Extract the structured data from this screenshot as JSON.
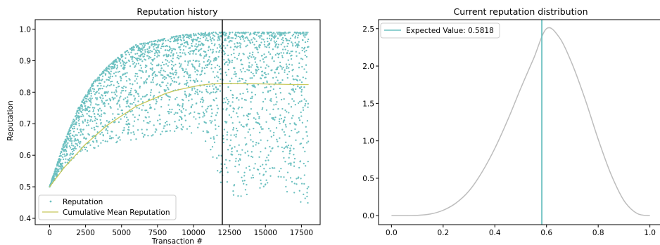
{
  "chart_data": [
    {
      "type": "scatter",
      "title": "Reputation history",
      "xlabel": "Transaction #",
      "ylabel": "Reputation",
      "xlim": [
        -1000,
        18800
      ],
      "ylim": [
        0.38,
        1.03
      ],
      "xticks": [
        0,
        2500,
        5000,
        7500,
        10000,
        12500,
        15000,
        17500
      ],
      "xtick_labels": [
        "0",
        "2500",
        "5000",
        "7500",
        "10000",
        "12500",
        "15000",
        "17500"
      ],
      "yticks": [
        0.4,
        0.5,
        0.6,
        0.7,
        0.8,
        0.9,
        1.0
      ],
      "ytick_labels": [
        "0.4",
        "0.5",
        "0.6",
        "0.7",
        "0.8",
        "0.9",
        "1.0"
      ],
      "vline_x": 12000,
      "legend_position": "lower-left",
      "colors": {
        "reputation": "#6cc0c0",
        "cumulative_mean": "#c8c85a",
        "vline": "#000000"
      },
      "series": [
        {
          "name": "Reputation",
          "kind": "points",
          "upper_envelope": {
            "x": [
              0,
              1000,
              2000,
              3000,
              4000,
              5000,
              6000,
              7000,
              8000,
              9000,
              10000,
              11000,
              12000,
              13000,
              14000,
              15000,
              16000,
              17000,
              18000
            ],
            "y": [
              0.5,
              0.64,
              0.75,
              0.83,
              0.88,
              0.92,
              0.95,
              0.96,
              0.97,
              0.98,
              0.985,
              0.99,
              0.99,
              0.99,
              0.99,
              0.99,
              0.99,
              0.99,
              0.99
            ]
          },
          "lower_envelope": {
            "x": [
              0,
              1000,
              2000,
              3000,
              4000,
              5000,
              6000,
              7000,
              8000,
              9000,
              10000,
              11000,
              12000,
              13000,
              14000,
              15000,
              16000,
              17000,
              18000
            ],
            "y": [
              0.5,
              0.56,
              0.6,
              0.62,
              0.64,
              0.64,
              0.65,
              0.66,
              0.66,
              0.67,
              0.66,
              0.64,
              0.5,
              0.46,
              0.48,
              0.5,
              0.5,
              0.46,
              0.44
            ]
          }
        },
        {
          "name": "Cumulative Mean Reputation",
          "kind": "line",
          "x": [
            0,
            500,
            1000,
            1500,
            2000,
            2500,
            3000,
            3500,
            4000,
            4500,
            5000,
            5500,
            6000,
            6500,
            7000,
            7500,
            8000,
            8500,
            9000,
            9500,
            10000,
            10500,
            11000,
            11500,
            12000,
            13000,
            14000,
            15000,
            16000,
            17000,
            18000
          ],
          "y": [
            0.5,
            0.53,
            0.56,
            0.585,
            0.61,
            0.635,
            0.655,
            0.675,
            0.695,
            0.71,
            0.725,
            0.74,
            0.755,
            0.765,
            0.775,
            0.785,
            0.795,
            0.802,
            0.808,
            0.813,
            0.818,
            0.822,
            0.825,
            0.827,
            0.828,
            0.828,
            0.827,
            0.826,
            0.825,
            0.824,
            0.824
          ]
        }
      ]
    },
    {
      "type": "line",
      "title": "Current reputation distribution",
      "xlabel": "",
      "ylabel": "",
      "xlim": [
        -0.05,
        1.05
      ],
      "ylim": [
        -0.12,
        2.62
      ],
      "xticks": [
        0.0,
        0.2,
        0.4,
        0.6,
        0.8,
        1.0
      ],
      "xtick_labels": [
        "0.0",
        "0.2",
        "0.4",
        "0.6",
        "0.8",
        "1.0"
      ],
      "yticks": [
        0.0,
        0.5,
        1.0,
        1.5,
        2.0,
        2.5
      ],
      "ytick_labels": [
        "0.0",
        "0.5",
        "1.0",
        "1.5",
        "2.0",
        "2.5"
      ],
      "vline_x": 0.5818,
      "legend_position": "top-left",
      "colors": {
        "density": "#bdbdbd",
        "expected_value": "#6cc0c0"
      },
      "series": [
        {
          "name": "",
          "x": [
            0.0,
            0.05,
            0.1,
            0.15,
            0.2,
            0.25,
            0.3,
            0.35,
            0.4,
            0.45,
            0.5,
            0.55,
            0.6,
            0.65,
            0.7,
            0.75,
            0.8,
            0.85,
            0.9,
            0.95,
            1.0
          ],
          "y": [
            0.0,
            0.0003,
            0.004,
            0.022,
            0.072,
            0.17,
            0.33,
            0.58,
            0.9,
            1.28,
            1.7,
            2.1,
            2.5,
            2.38,
            2.02,
            1.55,
            1.02,
            0.55,
            0.2,
            0.03,
            0.0
          ]
        },
        {
          "name": "Expected Value: 0.5818",
          "kind": "vline",
          "x": 0.5818
        }
      ]
    }
  ]
}
